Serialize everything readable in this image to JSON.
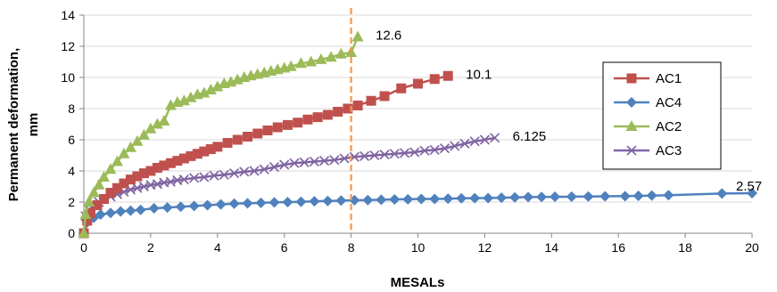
{
  "chart_data": {
    "type": "line",
    "title": "",
    "xlabel": "MESALs",
    "ylabel_lines": [
      "Permanent deformation,",
      "mm"
    ],
    "xlim": [
      0,
      20
    ],
    "ylim": [
      0,
      14
    ],
    "x_ticks": [
      0,
      2,
      4,
      6,
      8,
      10,
      12,
      14,
      16,
      18,
      20
    ],
    "y_ticks": [
      0,
      2,
      4,
      6,
      8,
      10,
      12,
      14
    ],
    "grid": "horizontal",
    "legend_position": "right",
    "reference_line": {
      "x": 8,
      "color": "#F79646",
      "style": "dashed"
    },
    "series": [
      {
        "name": "AC1",
        "color": "#C0504D",
        "marker": "square",
        "end_label": "10.1",
        "x": [
          0,
          0.1,
          0.2,
          0.4,
          0.6,
          0.8,
          1.0,
          1.2,
          1.4,
          1.6,
          1.8,
          2.0,
          2.2,
          2.4,
          2.6,
          2.8,
          3.0,
          3.2,
          3.4,
          3.6,
          3.8,
          4.0,
          4.3,
          4.6,
          4.9,
          5.2,
          5.5,
          5.8,
          6.1,
          6.4,
          6.7,
          7.0,
          7.3,
          7.6,
          7.9,
          8.2,
          8.6,
          9.0,
          9.5,
          10.0,
          10.5,
          10.9
        ],
        "y": [
          0,
          0.8,
          1.3,
          1.8,
          2.2,
          2.6,
          2.9,
          3.2,
          3.45,
          3.65,
          3.85,
          4.0,
          4.2,
          4.35,
          4.5,
          4.65,
          4.8,
          4.95,
          5.1,
          5.25,
          5.4,
          5.55,
          5.8,
          6.0,
          6.2,
          6.4,
          6.6,
          6.8,
          6.95,
          7.1,
          7.3,
          7.45,
          7.6,
          7.8,
          8.0,
          8.2,
          8.5,
          8.8,
          9.3,
          9.6,
          9.9,
          10.1
        ]
      },
      {
        "name": "AC4",
        "color": "#4F81BD",
        "marker": "diamond",
        "end_label": "2.57",
        "x": [
          0,
          0.1,
          0.3,
          0.5,
          0.8,
          1.1,
          1.4,
          1.7,
          2.1,
          2.5,
          2.9,
          3.3,
          3.7,
          4.1,
          4.5,
          4.9,
          5.3,
          5.7,
          6.1,
          6.5,
          6.9,
          7.3,
          7.7,
          8.1,
          8.5,
          8.9,
          9.3,
          9.7,
          10.1,
          10.5,
          10.9,
          11.3,
          11.7,
          12.1,
          12.5,
          12.9,
          13.3,
          13.7,
          14.1,
          14.6,
          15.1,
          15.6,
          16.2,
          16.6,
          17.0,
          17.5,
          19.1,
          20.0
        ],
        "y": [
          0,
          0.7,
          1.0,
          1.2,
          1.3,
          1.4,
          1.45,
          1.5,
          1.6,
          1.65,
          1.7,
          1.75,
          1.8,
          1.85,
          1.9,
          1.92,
          1.95,
          1.98,
          2.0,
          2.02,
          2.05,
          2.07,
          2.1,
          2.12,
          2.13,
          2.15,
          2.17,
          2.18,
          2.2,
          2.2,
          2.22,
          2.24,
          2.25,
          2.26,
          2.28,
          2.3,
          2.32,
          2.33,
          2.34,
          2.35,
          2.36,
          2.37,
          2.38,
          2.4,
          2.42,
          2.44,
          2.55,
          2.57
        ]
      },
      {
        "name": "AC2",
        "color": "#9BBB59",
        "marker": "triangle",
        "end_label": "12.6",
        "x": [
          0,
          0.05,
          0.15,
          0.3,
          0.45,
          0.6,
          0.8,
          1.0,
          1.2,
          1.4,
          1.6,
          1.8,
          2.0,
          2.2,
          2.4,
          2.6,
          2.8,
          3.0,
          3.2,
          3.4,
          3.6,
          3.8,
          4.0,
          4.2,
          4.4,
          4.6,
          4.8,
          5.0,
          5.2,
          5.4,
          5.6,
          5.8,
          6.0,
          6.2,
          6.5,
          6.8,
          7.1,
          7.4,
          7.7,
          8.0,
          8.2
        ],
        "y": [
          0,
          1.2,
          2.0,
          2.6,
          3.1,
          3.6,
          4.1,
          4.6,
          5.1,
          5.5,
          5.9,
          6.3,
          6.7,
          7.0,
          7.2,
          8.2,
          8.4,
          8.5,
          8.7,
          8.9,
          9.0,
          9.2,
          9.4,
          9.6,
          9.7,
          9.85,
          10.0,
          10.1,
          10.2,
          10.3,
          10.4,
          10.5,
          10.6,
          10.7,
          10.9,
          11.0,
          11.15,
          11.3,
          11.5,
          11.6,
          12.6
        ]
      },
      {
        "name": "AC3",
        "color": "#8064A2",
        "marker": "x",
        "end_label": "6.125",
        "x": [
          0,
          0.05,
          0.15,
          0.3,
          0.45,
          0.6,
          0.8,
          1.0,
          1.2,
          1.4,
          1.6,
          1.8,
          2.0,
          2.2,
          2.4,
          2.6,
          2.8,
          3.0,
          3.3,
          3.6,
          3.9,
          4.2,
          4.5,
          4.8,
          5.1,
          5.4,
          5.7,
          6.0,
          6.3,
          6.6,
          6.9,
          7.2,
          7.5,
          7.8,
          8.1,
          8.4,
          8.7,
          9.0,
          9.3,
          9.6,
          9.9,
          10.2,
          10.5,
          10.8,
          11.1,
          11.4,
          11.7,
          12.0,
          12.3
        ],
        "y": [
          0,
          1.1,
          1.5,
          1.8,
          2.0,
          2.2,
          2.35,
          2.5,
          2.65,
          2.8,
          2.9,
          3.0,
          3.1,
          3.15,
          3.25,
          3.3,
          3.4,
          3.45,
          3.55,
          3.6,
          3.7,
          3.75,
          3.85,
          3.95,
          4.0,
          4.1,
          4.25,
          4.4,
          4.5,
          4.55,
          4.6,
          4.65,
          4.7,
          4.8,
          4.9,
          4.95,
          5.0,
          5.05,
          5.1,
          5.15,
          5.2,
          5.3,
          5.35,
          5.45,
          5.6,
          5.75,
          5.9,
          6.0,
          6.125
        ]
      }
    ],
    "legend_order": [
      "AC1",
      "AC4",
      "AC2",
      "AC3"
    ]
  }
}
